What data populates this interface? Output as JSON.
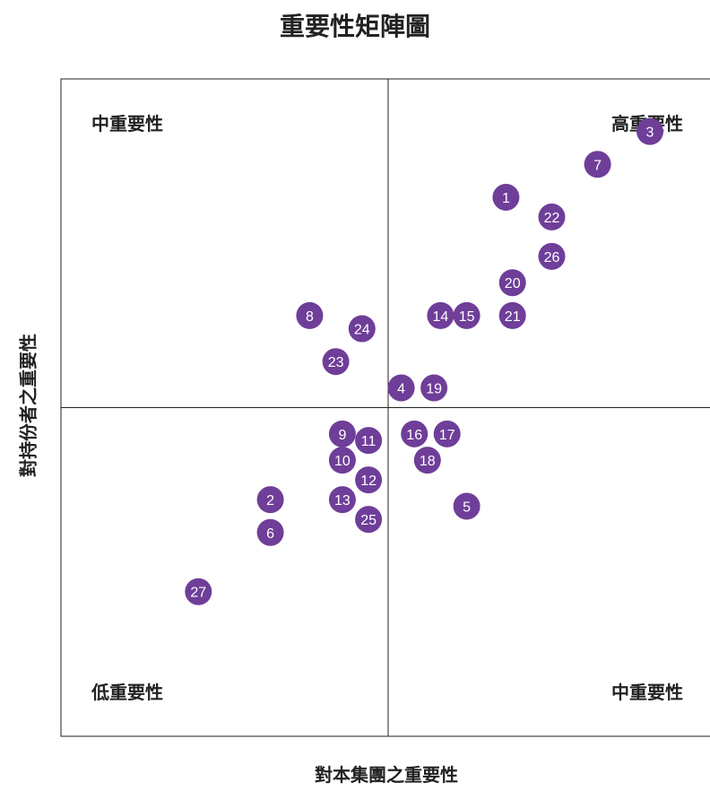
{
  "chart_data": {
    "type": "scatter",
    "title": "重要性矩陣圖",
    "xlabel": "對本集團之重要性",
    "ylabel": "對持份者之重要性",
    "marker_color": "#6f3e99",
    "xlim": [
      0,
      10
    ],
    "ylim": [
      0,
      10
    ],
    "quadrant_split": {
      "x": 5,
      "y": 5
    },
    "quadrant_labels": {
      "top_left": "中重要性",
      "top_right": "高重要性",
      "bottom_left": "低重要性",
      "bottom_right": "中重要性"
    },
    "points": [
      {
        "label": "1",
        "x": 6.8,
        "y": 8.2
      },
      {
        "label": "2",
        "x": 3.2,
        "y": 3.6
      },
      {
        "label": "3",
        "x": 9.0,
        "y": 9.2
      },
      {
        "label": "4",
        "x": 5.2,
        "y": 5.3
      },
      {
        "label": "5",
        "x": 6.2,
        "y": 3.5
      },
      {
        "label": "6",
        "x": 3.2,
        "y": 3.1
      },
      {
        "label": "7",
        "x": 8.2,
        "y": 8.7
      },
      {
        "label": "8",
        "x": 3.8,
        "y": 6.4
      },
      {
        "label": "9",
        "x": 4.3,
        "y": 4.6
      },
      {
        "label": "10",
        "x": 4.3,
        "y": 4.2
      },
      {
        "label": "11",
        "x": 4.7,
        "y": 4.5
      },
      {
        "label": "12",
        "x": 4.7,
        "y": 3.9
      },
      {
        "label": "13",
        "x": 4.3,
        "y": 3.6
      },
      {
        "label": "14",
        "x": 5.8,
        "y": 6.4
      },
      {
        "label": "15",
        "x": 6.2,
        "y": 6.4
      },
      {
        "label": "16",
        "x": 5.4,
        "y": 4.6
      },
      {
        "label": "17",
        "x": 5.9,
        "y": 4.6
      },
      {
        "label": "18",
        "x": 5.6,
        "y": 4.2
      },
      {
        "label": "19",
        "x": 5.7,
        "y": 5.3
      },
      {
        "label": "20",
        "x": 6.9,
        "y": 6.9
      },
      {
        "label": "21",
        "x": 6.9,
        "y": 6.4
      },
      {
        "label": "22",
        "x": 7.5,
        "y": 7.9
      },
      {
        "label": "23",
        "x": 4.2,
        "y": 5.7
      },
      {
        "label": "24",
        "x": 4.6,
        "y": 6.2
      },
      {
        "label": "25",
        "x": 4.7,
        "y": 3.3
      },
      {
        "label": "26",
        "x": 7.5,
        "y": 7.3
      },
      {
        "label": "27",
        "x": 2.1,
        "y": 2.2
      }
    ]
  }
}
